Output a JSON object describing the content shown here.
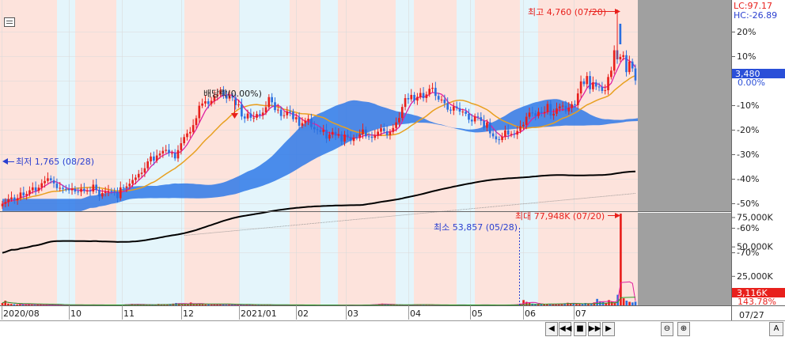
{
  "header": {
    "lc_label": "LC:97.17",
    "hc_label": "HC:-26.89"
  },
  "annotations": {
    "price_max": "최고 4,760 (07/20)",
    "price_min": "최저 1,765 (08/28)",
    "dividend": "배당락(0.00%)",
    "volume_max": "최대 77,948K (07/20)",
    "volume_min": "최소 53,857 (05/28)"
  },
  "right_axis": {
    "price_ticks": [
      "20%",
      "10%",
      "0.00%",
      "-10%",
      "-20%",
      "-30%",
      "-40%",
      "-50%",
      "-60%",
      "-70%"
    ],
    "current_price": "3,480",
    "current_pct": "0.00%",
    "volume_ticks": [
      "75,000K",
      "50,000K",
      "25,000K"
    ],
    "current_volume": "3,116K",
    "current_volume_pct": "143.78%",
    "date_label": "07/27"
  },
  "x_axis": {
    "labels": [
      "2020/08",
      "10",
      "11",
      "12",
      "2021/01",
      "02",
      "03",
      "04",
      "05",
      "06",
      "07"
    ]
  },
  "controls": {
    "prev": "◀",
    "rewind": "◀◀",
    "stop": "■",
    "forward": "▶▶",
    "next": "▶",
    "zoom_out": "⊖",
    "zoom_in": "⊕",
    "font_a": "A"
  },
  "colors": {
    "up": "#e8201c",
    "down": "#2a6fe0",
    "ma_short": "#e020a0",
    "ma_mid": "#e8a020",
    "ma_long": "#000000",
    "cloud": "#2f79e8",
    "pink_band": "#fde3dc",
    "blue_band": "#e4f5fb",
    "future_gray": "#a0a0a0"
  },
  "chart_data": [
    {
      "type": "candlestick",
      "name": "price",
      "x_range": [
        "2020/08",
        "2021/07/27"
      ],
      "y_range_pct": [
        -70,
        20
      ],
      "notes": "Daily candles with moving averages and Ichimoku cloud; values estimated on the right % axis",
      "highlights": {
        "max": {
          "value": 4760,
          "date": "07/20"
        },
        "min": {
          "value": 1765,
          "date": "08/28"
        },
        "last": {
          "value": 3480,
          "pct": 0.0
        }
      },
      "close_pct": [
        -50.2,
        -49.5,
        -48.3,
        -47.6,
        -48.8,
        -47.9,
        -45.6,
        -46.8,
        -46.2,
        -44.7,
        -43.5,
        -44.9,
        -43.6,
        -41.8,
        -40.9,
        -39.8,
        -40.6,
        -41.9,
        -43.8,
        -43.7,
        -44.1,
        -44.2,
        -44.7,
        -44.1,
        -45.2,
        -45.3,
        -44.1,
        -45.0,
        -44.8,
        -45.2,
        -42.4,
        -44.5,
        -47.2,
        -45.8,
        -45.3,
        -44.9,
        -45.3,
        -45.5,
        -47.9,
        -43.5,
        -43.7,
        -43.1,
        -42.0,
        -40.5,
        -39.5,
        -38.0,
        -37.5,
        -35.7,
        -32.9,
        -30.9,
        -32.6,
        -30.5,
        -29.7,
        -28.6,
        -28.2,
        -29.5,
        -29.5,
        -31.7,
        -28.3,
        -25.5,
        -23.0,
        -21.5,
        -20.9,
        -18.1,
        -15.3,
        -10.2,
        -9.3,
        -8.4,
        -9.5,
        -8.2,
        -6.2,
        -5.6,
        -3.8,
        -6.0,
        -7.3,
        -6.2,
        -6.9,
        -10.0,
        -9.7,
        -14.6,
        -15.4,
        -13.4,
        -15.1,
        -15.1,
        -13.6,
        -14.0,
        -13.0,
        -10.8,
        -6.7,
        -8.8,
        -12.0,
        -11.8,
        -14.4,
        -14.1,
        -12.5,
        -12.7,
        -15.7,
        -14.9,
        -18.4,
        -17.3,
        -16.3,
        -15.5,
        -18.9,
        -19.8,
        -20.1,
        -20.9,
        -20.0,
        -23.6,
        -22.0,
        -20.9,
        -22.4,
        -21.8,
        -24.8,
        -22.0,
        -23.1,
        -24.6,
        -23.2,
        -23.3,
        -21.9,
        -19.9,
        -22.7,
        -22.8,
        -23.3,
        -22.4,
        -20.8,
        -19.4,
        -20.6,
        -22.2,
        -20.9,
        -19.3,
        -17.0,
        -15.2,
        -10.7,
        -7.1,
        -7.6,
        -5.8,
        -8.1,
        -6.6,
        -5.0,
        -7.1,
        -5.6,
        -3.3,
        -2.9,
        -6.2,
        -7.7,
        -7.7,
        -9.2,
        -11.8,
        -12.2,
        -10.5,
        -11.2,
        -12.6,
        -12.6,
        -13.5,
        -15.9,
        -16.6,
        -14.6,
        -14.9,
        -16.4,
        -19.2,
        -17.0,
        -21.5,
        -22.7,
        -23.9,
        -24.2,
        -22.8,
        -20.3,
        -22.0,
        -21.7,
        -22.0,
        -20.5,
        -18.6,
        -18.0,
        -14.7,
        -13.0,
        -13.3,
        -14.4,
        -12.7,
        -13.2,
        -12.8,
        -9.5,
        -14.2,
        -13.5,
        -11.3,
        -10.5,
        -10.2,
        -12.5,
        -11.1,
        -9.6,
        -10.0,
        -5.2,
        -0.3,
        -1.4,
        1.9,
        -3.5,
        -0.7,
        -2.4,
        -2.5,
        -4.2,
        -3.9,
        1.5,
        4.1,
        12.4,
        8.7,
        9.7,
        10.4,
        3.5,
        7.8,
        5.0,
        0.1
      ]
    },
    {
      "type": "bar",
      "name": "volume",
      "x_range": [
        "2020/08",
        "2021/07/27"
      ],
      "ylim": [
        0,
        78000
      ],
      "unit": "K",
      "highlights": {
        "max": {
          "value": 77948,
          "date": "07/20"
        },
        "min": {
          "value": 53.857,
          "date": "05/28"
        },
        "last": {
          "value": 3116,
          "pct": "143.78%"
        }
      },
      "values_k": [
        2000,
        4000,
        1500,
        1200,
        1000,
        800,
        900,
        700,
        600,
        1500,
        500,
        400,
        600,
        500,
        300,
        400,
        300,
        500,
        400,
        300,
        350,
        300,
        250,
        300,
        400,
        350,
        300,
        250,
        300,
        400,
        500,
        600,
        300,
        250,
        200,
        300,
        250,
        200,
        300,
        400,
        500,
        600,
        800,
        1000,
        1200,
        900,
        700,
        600,
        800,
        500,
        600,
        400,
        450,
        1200,
        900,
        700,
        500,
        1100,
        1500,
        2000,
        1800,
        1200,
        900,
        700,
        2400,
        1700,
        1500,
        1200,
        900,
        700,
        800,
        600,
        900,
        1200,
        1000,
        700,
        500,
        400,
        700,
        600,
        500,
        400,
        300,
        500,
        600,
        700,
        500,
        400,
        600,
        500,
        400,
        350,
        300,
        250,
        300,
        400,
        350,
        300,
        250,
        200,
        300,
        250,
        200,
        150,
        200,
        300,
        250,
        200,
        180,
        220,
        300,
        250,
        200,
        150,
        200,
        250,
        300,
        250,
        200,
        180,
        200,
        250,
        300,
        400,
        500,
        600,
        800,
        1000,
        1200,
        1500,
        800,
        700,
        600,
        500,
        400,
        350,
        300,
        250,
        300,
        400,
        500,
        600,
        700,
        500,
        400,
        300,
        250,
        200,
        180,
        200,
        250,
        300,
        350,
        400,
        500,
        400,
        300,
        250,
        200,
        250,
        300,
        400,
        500,
        400,
        300,
        250,
        200,
        150,
        100,
        53.857,
        300,
        400,
        500,
        600,
        700,
        900,
        1500,
        4500,
        3000,
        2000,
        1500,
        1200,
        1000,
        900,
        800,
        1000,
        1200,
        900,
        700,
        1300,
        1500,
        1800,
        2200,
        1700,
        1400,
        1200,
        1000,
        1500,
        2000,
        1700,
        1400,
        2500,
        5500,
        3500,
        2800,
        2000,
        4500,
        3000,
        2000,
        9000,
        77948,
        6000,
        4000,
        3000,
        2500,
        3116
      ]
    }
  ]
}
